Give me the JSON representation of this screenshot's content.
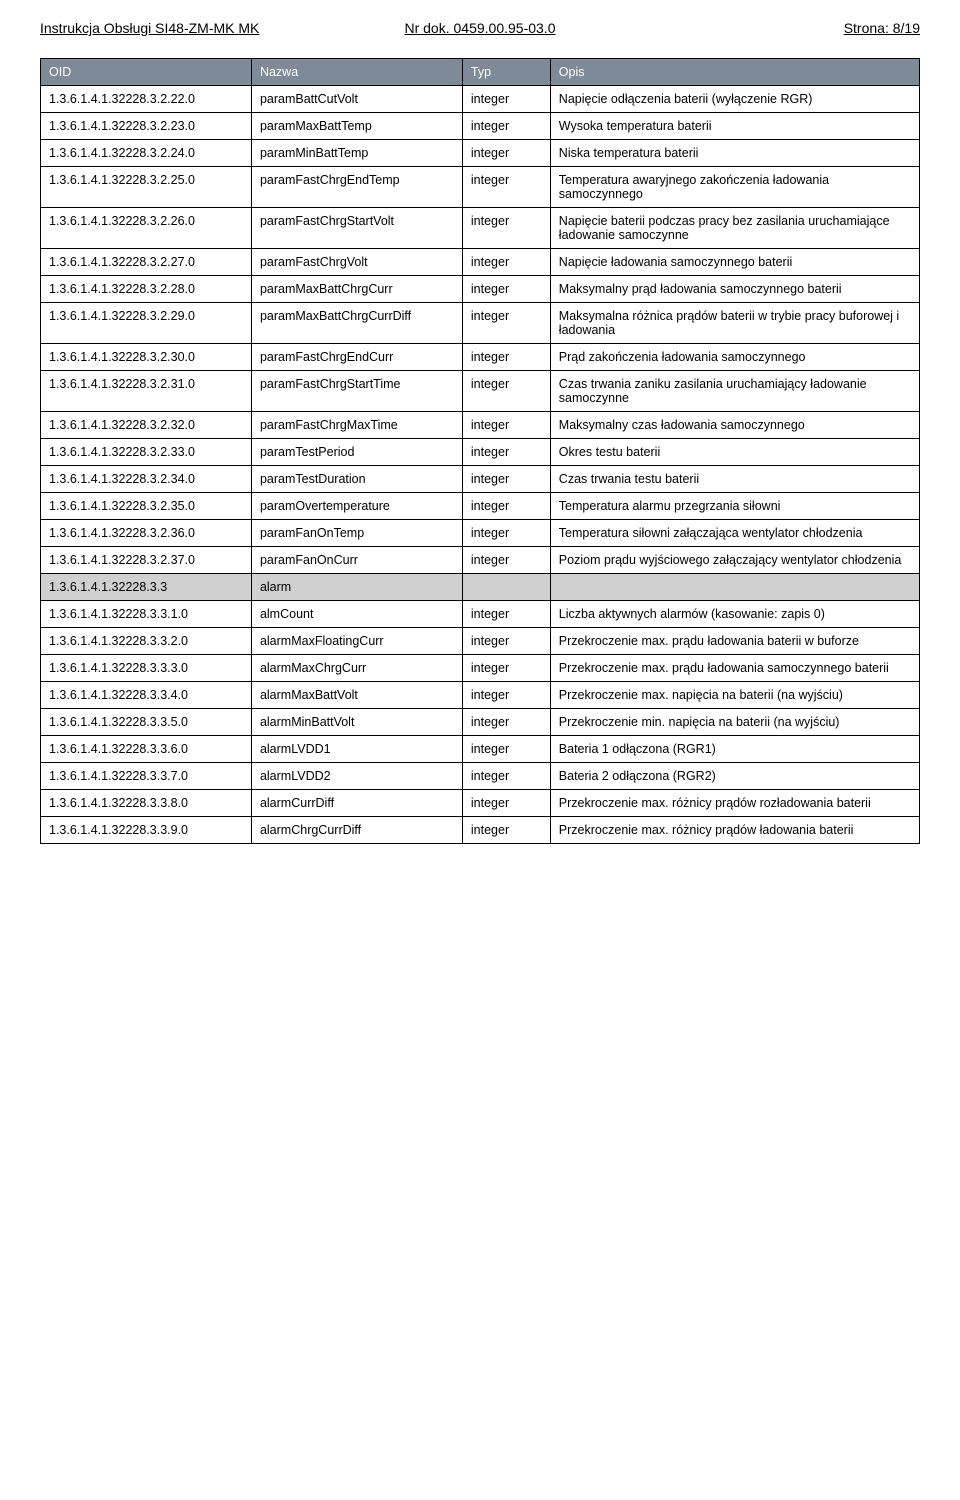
{
  "header": {
    "left": "Instrukcja Obsługi SI48-ZM-MK MK",
    "center": "Nr dok. 0459.00.95-03.0",
    "right": "Strona: 8/19"
  },
  "table": {
    "columns": [
      "OID",
      "Nazwa",
      "Typ",
      "Opis"
    ],
    "rows": [
      {
        "oid": "1.3.6.1.4.1.32228.3.2.22.0",
        "name": "paramBattCutVolt",
        "type": "integer",
        "desc": "Napięcie odłączenia baterii (wyłączenie RGR)"
      },
      {
        "oid": "1.3.6.1.4.1.32228.3.2.23.0",
        "name": "paramMaxBattTemp",
        "type": "integer",
        "desc": "Wysoka temperatura baterii"
      },
      {
        "oid": "1.3.6.1.4.1.32228.3.2.24.0",
        "name": "paramMinBattTemp",
        "type": "integer",
        "desc": "Niska temperatura baterii"
      },
      {
        "oid": "1.3.6.1.4.1.32228.3.2.25.0",
        "name": "paramFastChrgEndTemp",
        "type": "integer",
        "desc": "Temperatura awaryjnego zakończenia ładowania samoczynnego"
      },
      {
        "oid": "1.3.6.1.4.1.32228.3.2.26.0",
        "name": "paramFastChrgStartVolt",
        "type": "integer",
        "desc": "Napięcie baterii podczas pracy bez zasilania uruchamiające ładowanie samoczynne"
      },
      {
        "oid": "1.3.6.1.4.1.32228.3.2.27.0",
        "name": "paramFastChrgVolt",
        "type": "integer",
        "desc": "Napięcie ładowania samoczynnego baterii"
      },
      {
        "oid": "1.3.6.1.4.1.32228.3.2.28.0",
        "name": "paramMaxBattChrgCurr",
        "type": "integer",
        "desc": "Maksymalny prąd ładowania samoczynnego baterii"
      },
      {
        "oid": "1.3.6.1.4.1.32228.3.2.29.0",
        "name": "paramMaxBattChrgCurrDiff",
        "type": "integer",
        "desc": "Maksymalna różnica prądów baterii w trybie pracy buforowej i ładowania"
      },
      {
        "oid": "1.3.6.1.4.1.32228.3.2.30.0",
        "name": "paramFastChrgEndCurr",
        "type": "integer",
        "desc": "Prąd zakończenia ładowania samoczynnego"
      },
      {
        "oid": "1.3.6.1.4.1.32228.3.2.31.0",
        "name": "paramFastChrgStartTime",
        "type": "integer",
        "desc": "Czas trwania zaniku zasilania uruchamiający ładowanie samoczynne"
      },
      {
        "oid": "1.3.6.1.4.1.32228.3.2.32.0",
        "name": "paramFastChrgMaxTime",
        "type": "integer",
        "desc": "Maksymalny czas ładowania samoczynnego"
      },
      {
        "oid": "1.3.6.1.4.1.32228.3.2.33.0",
        "name": "paramTestPeriod",
        "type": "integer",
        "desc": "Okres testu baterii"
      },
      {
        "oid": "1.3.6.1.4.1.32228.3.2.34.0",
        "name": "paramTestDuration",
        "type": "integer",
        "desc": "Czas trwania testu baterii"
      },
      {
        "oid": "1.3.6.1.4.1.32228.3.2.35.0",
        "name": "paramOvertemperature",
        "type": "integer",
        "desc": "Temperatura alarmu przegrzania siłowni"
      },
      {
        "oid": "1.3.6.1.4.1.32228.3.2.36.0",
        "name": "paramFanOnTemp",
        "type": "integer",
        "desc": "Temperatura siłowni załączająca wentylator chłodzenia"
      },
      {
        "oid": "1.3.6.1.4.1.32228.3.2.37.0",
        "name": "paramFanOnCurr",
        "type": "integer",
        "desc": "Poziom prądu wyjściowego załączający wentylator chłodzenia"
      },
      {
        "oid": "1.3.6.1.4.1.32228.3.3",
        "name": "alarm",
        "type": "",
        "desc": "",
        "section": true
      },
      {
        "oid": "1.3.6.1.4.1.32228.3.3.1.0",
        "name": "almCount",
        "type": "integer",
        "desc": "Liczba aktywnych alarmów (kasowanie: zapis 0)"
      },
      {
        "oid": "1.3.6.1.4.1.32228.3.3.2.0",
        "name": "alarmMaxFloatingCurr",
        "type": "integer",
        "desc": "Przekroczenie max. prądu ładowania baterii w buforze"
      },
      {
        "oid": "1.3.6.1.4.1.32228.3.3.3.0",
        "name": "alarmMaxChrgCurr",
        "type": "integer",
        "desc": "Przekroczenie max. prądu ładowania samoczynnego baterii"
      },
      {
        "oid": "1.3.6.1.4.1.32228.3.3.4.0",
        "name": "alarmMaxBattVolt",
        "type": "integer",
        "desc": "Przekroczenie max. napięcia na baterii (na wyjściu)"
      },
      {
        "oid": "1.3.6.1.4.1.32228.3.3.5.0",
        "name": "alarmMinBattVolt",
        "type": "integer",
        "desc": "Przekroczenie min. napięcia na baterii (na wyjściu)"
      },
      {
        "oid": "1.3.6.1.4.1.32228.3.3.6.0",
        "name": "alarmLVDD1",
        "type": "integer",
        "desc": "Bateria 1 odłączona (RGR1)"
      },
      {
        "oid": "1.3.6.1.4.1.32228.3.3.7.0",
        "name": "alarmLVDD2",
        "type": "integer",
        "desc": "Bateria 2 odłączona (RGR2)"
      },
      {
        "oid": "1.3.6.1.4.1.32228.3.3.8.0",
        "name": "alarmCurrDiff",
        "type": "integer",
        "desc": "Przekroczenie max. różnicy prądów rozładowania baterii"
      },
      {
        "oid": "1.3.6.1.4.1.32228.3.3.9.0",
        "name": "alarmChrgCurrDiff",
        "type": "integer",
        "desc": "Przekroczenie max. różnicy prądów ładowania baterii"
      }
    ]
  }
}
